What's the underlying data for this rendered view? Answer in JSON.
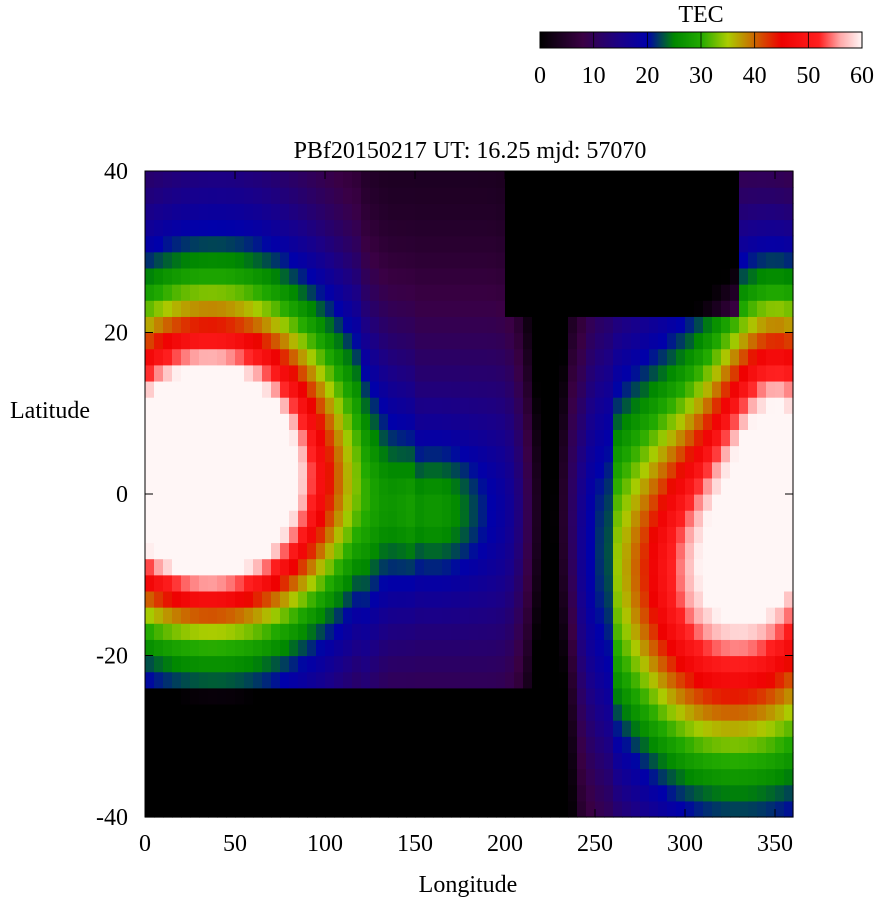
{
  "chart_data": {
    "type": "heatmap",
    "title": "PBf20150217  UT: 16.25  mjd: 57070",
    "xlabel": "Longitude",
    "ylabel": "Latitude",
    "xlim": [
      0,
      360
    ],
    "ylim": [
      -40,
      40
    ],
    "x_ticks": [
      "0",
      "50",
      "100",
      "150",
      "200",
      "250",
      "300",
      "350"
    ],
    "y_ticks": [
      "40",
      "20",
      "0",
      "-20",
      "-40"
    ],
    "colorbar": {
      "label": "TEC",
      "range": [
        0,
        60
      ],
      "ticks": [
        "0",
        "10",
        "20",
        "30",
        "40",
        "50",
        "60"
      ],
      "stops": [
        {
          "value": 0,
          "color": "#000000"
        },
        {
          "value": 8,
          "color": "#3a0044"
        },
        {
          "value": 15,
          "color": "#1a0088"
        },
        {
          "value": 20,
          "color": "#0000aa"
        },
        {
          "value": 25,
          "color": "#008800"
        },
        {
          "value": 30,
          "color": "#22aa00"
        },
        {
          "value": 35,
          "color": "#aacc00"
        },
        {
          "value": 40,
          "color": "#cc6600"
        },
        {
          "value": 45,
          "color": "#ee0000"
        },
        {
          "value": 52,
          "color": "#ff2020"
        },
        {
          "value": 56,
          "color": "#ffaaaa"
        },
        {
          "value": 60,
          "color": "#fff6f6"
        }
      ]
    },
    "grid_resolution": {
      "lon_step": 5,
      "lat_step": 2
    },
    "features": {
      "description_free": true,
      "west_crest_center_lon": 40,
      "east_crest_center_lon": 320,
      "trough_lon": 225
    }
  }
}
